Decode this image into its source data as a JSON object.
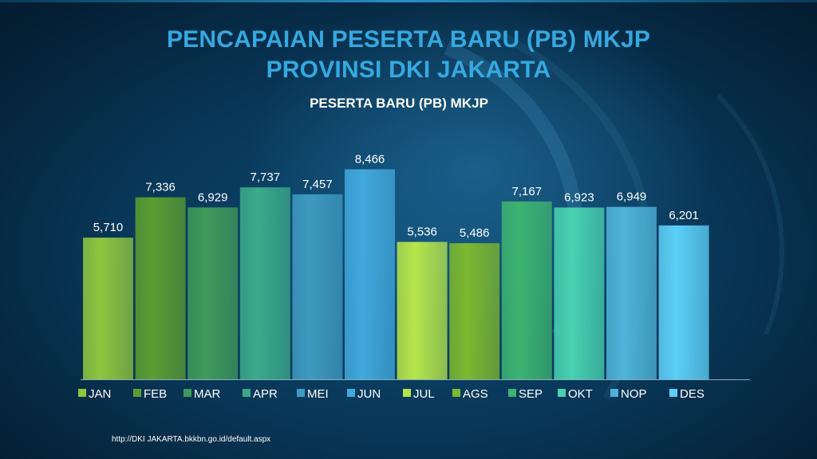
{
  "slide": {
    "title_line1": "PENCAPAIAN PESERTA BARU (PB) MKJP",
    "title_line2": "PROVINSI DKI JAKARTA",
    "footer_url": "http://DKI JAKARTA.bkkbn.go.id/default.aspx"
  },
  "chart_data": {
    "type": "bar",
    "title": "PESERTA BARU (PB) MKJP",
    "categories": [
      "JAN",
      "FEB",
      "MAR",
      "APR",
      "MEI",
      "JUN",
      "JUL",
      "AGS",
      "SEP",
      "OKT",
      "NOP",
      "DES"
    ],
    "values": [
      5710,
      7336,
      6929,
      7737,
      7457,
      8466,
      5536,
      5486,
      7167,
      6923,
      6949,
      6201
    ],
    "data_labels": [
      "5,710",
      "7,336",
      "6,929",
      "7,737",
      "7,457",
      "8,466",
      "5,536",
      "5,486",
      "7,167",
      "6,923",
      "6,949",
      "6,201"
    ],
    "colors": [
      "#8ec63f",
      "#5a9e32",
      "#3f9a5a",
      "#3aaa8a",
      "#3e9ac0",
      "#41a8dc",
      "#b5e54a",
      "#7cb82f",
      "#3cb371",
      "#48d1b0",
      "#4fb3d9",
      "#5ccff7"
    ],
    "ylim": [
      0,
      9000
    ],
    "legend": "bottom",
    "grid": false
  }
}
